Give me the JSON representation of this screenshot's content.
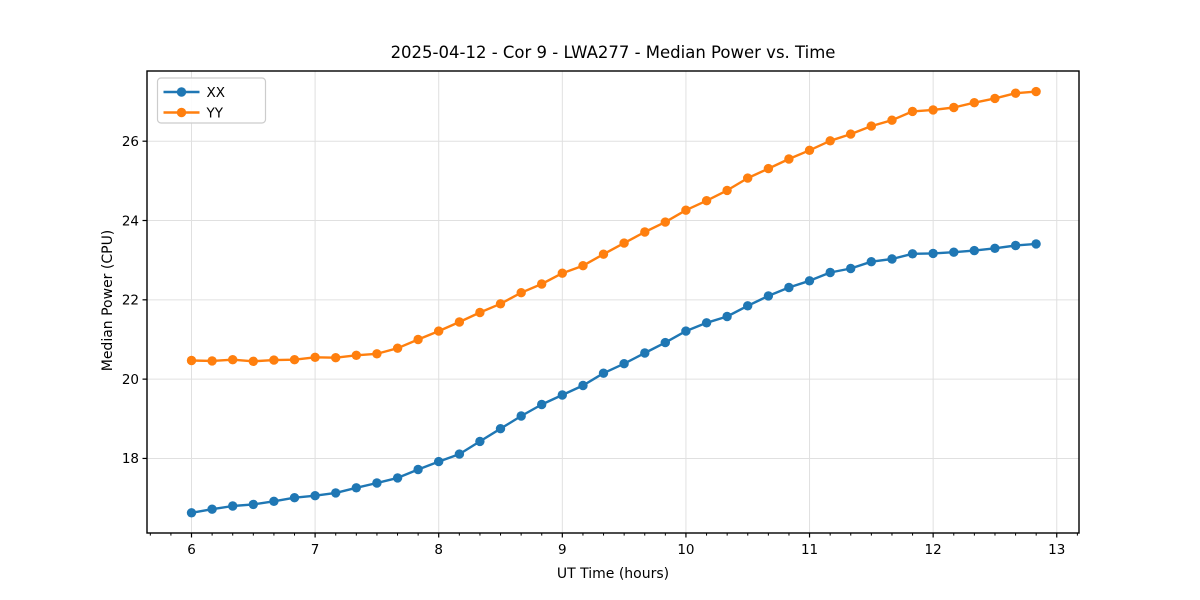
{
  "chart_data": {
    "type": "line",
    "title": "2025-04-12 - Cor 9 - LWA277 - Median Power vs. Time",
    "xlabel": "UT Time (hours)",
    "ylabel": "Median Power (CPU)",
    "xlim": [
      5.64,
      13.18
    ],
    "ylim": [
      16.12,
      27.77
    ],
    "xticks": [
      6,
      7,
      8,
      9,
      10,
      11,
      12,
      13
    ],
    "yticks": [
      18,
      20,
      22,
      24,
      26
    ],
    "x_minor_tick_step": 0.16667,
    "grid": true,
    "grid_color": "#e0e0e0",
    "legend_position": "upper-left",
    "marker": "circle",
    "x": [
      6.0,
      6.167,
      6.333,
      6.5,
      6.667,
      6.833,
      7.0,
      7.167,
      7.333,
      7.5,
      7.667,
      7.833,
      8.0,
      8.167,
      8.333,
      8.5,
      8.667,
      8.833,
      9.0,
      9.167,
      9.333,
      9.5,
      9.667,
      9.833,
      10.0,
      10.167,
      10.333,
      10.5,
      10.667,
      10.833,
      11.0,
      11.167,
      11.333,
      11.5,
      11.667,
      11.833,
      12.0,
      12.167,
      12.333,
      12.5,
      12.667,
      12.833
    ],
    "series": [
      {
        "name": "XX",
        "color": "#1f77b4",
        "values": [
          16.63,
          16.72,
          16.8,
          16.84,
          16.92,
          17.01,
          17.06,
          17.13,
          17.26,
          17.38,
          17.51,
          17.72,
          17.92,
          18.11,
          18.43,
          18.75,
          19.07,
          19.36,
          19.6,
          19.84,
          20.15,
          20.39,
          20.66,
          20.92,
          21.21,
          21.42,
          21.58,
          21.85,
          22.1,
          22.31,
          22.48,
          22.69,
          22.79,
          22.96,
          23.03,
          23.16,
          23.17,
          23.2,
          23.24,
          23.3,
          23.37,
          23.41
        ]
      },
      {
        "name": "YY",
        "color": "#ff7f0e",
        "values": [
          20.47,
          20.46,
          20.49,
          20.45,
          20.48,
          20.49,
          20.55,
          20.54,
          20.6,
          20.64,
          20.78,
          21.0,
          21.21,
          21.44,
          21.68,
          21.9,
          22.18,
          22.4,
          22.67,
          22.86,
          23.15,
          23.43,
          23.71,
          23.96,
          24.26,
          24.5,
          24.76,
          25.07,
          25.31,
          25.55,
          25.77,
          26.01,
          26.18,
          26.38,
          26.53,
          26.75,
          26.79,
          26.85,
          26.97,
          27.08,
          27.21,
          27.25
        ]
      }
    ]
  }
}
